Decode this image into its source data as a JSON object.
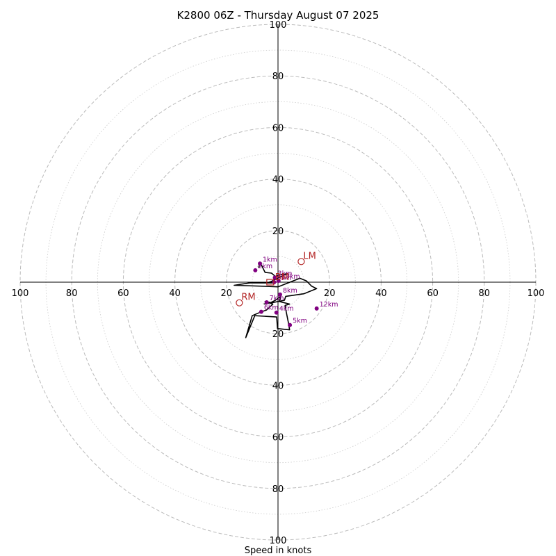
{
  "chart_data": {
    "type": "scatter",
    "subtype": "hodograph",
    "title": "K2800 06Z - Thursday August 07 2025",
    "xlabel": "Speed in knots",
    "rmax": 100,
    "ring_ticks": [
      20,
      40,
      60,
      80,
      100
    ],
    "axis_tick_labels": {
      "top": [
        "20",
        "40",
        "60",
        "80",
        "100"
      ],
      "bottom": [
        "20",
        "40",
        "60",
        "80",
        "100"
      ],
      "left": [
        "20",
        "40",
        "60",
        "80",
        "100"
      ],
      "right": [
        "20",
        "40",
        "60",
        "80",
        "100"
      ]
    },
    "grid": true,
    "colors": {
      "trace": "#000000",
      "height_marker": "#800080",
      "motion_marker": "#b22222",
      "grid": "#bbbbbb",
      "grid_minor": "#d0d0d0"
    },
    "trace": [
      [
        -7.5,
        -5.5
      ],
      [
        -7.0,
        -7.8
      ],
      [
        -5.0,
        -3.8
      ],
      [
        -2.5,
        -3.5
      ],
      [
        -1.0,
        -2.2
      ],
      [
        0.5,
        -2.8
      ],
      [
        3.2,
        -3.2
      ],
      [
        -2.8,
        -0.2
      ],
      [
        -4.0,
        0.2
      ],
      [
        -1.2,
        0.3
      ],
      [
        -11.0,
        0.3
      ],
      [
        -17.0,
        1.2
      ],
      [
        -5.0,
        1.6
      ],
      [
        0.0,
        1.8
      ],
      [
        8.5,
        -1.5
      ],
      [
        11.0,
        -0.5
      ],
      [
        13.0,
        1.5
      ],
      [
        15.0,
        2.5
      ],
      [
        10.0,
        4.5
      ],
      [
        3.0,
        5.5
      ],
      [
        2.5,
        7.0
      ],
      [
        -2.5,
        8.0
      ],
      [
        -5.0,
        7.5
      ],
      [
        -2.0,
        8.5
      ],
      [
        -3.0,
        9.5
      ],
      [
        -4.5,
        10.8
      ],
      [
        -6.5,
        11.5
      ],
      [
        -10.0,
        13.0
      ],
      [
        -12.5,
        21.5
      ],
      [
        -9.0,
        13.0
      ],
      [
        -0.5,
        13.5
      ],
      [
        -0.2,
        18.0
      ],
      [
        4.5,
        18.5
      ],
      [
        4.0,
        15.5
      ],
      [
        3.0,
        10.5
      ],
      [
        2.8,
        9.0
      ],
      [
        4.5,
        8.5
      ],
      [
        0.5,
        7.5
      ],
      [
        1.0,
        5.5
      ],
      [
        -1.0,
        7.0
      ],
      [
        -3.0,
        8.0
      ],
      [
        -5.5,
        8.5
      ]
    ],
    "height_points": [
      {
        "label": "1km",
        "u": -7.0,
        "v": -7.2
      },
      {
        "label": "2km",
        "u": -8.8,
        "v": -4.6
      },
      {
        "label": "3km",
        "u": -1.2,
        "v": -1.8
      },
      {
        "label": "4km",
        "u": -0.6,
        "v": 11.8
      },
      {
        "label": "5km",
        "u": 4.6,
        "v": 16.6
      },
      {
        "label": "6km",
        "u": -6.5,
        "v": 11.5
      },
      {
        "label": "7km",
        "u": -4.4,
        "v": 7.8
      },
      {
        "label": "8km",
        "u": 0.8,
        "v": 4.8
      },
      {
        "label": "9km",
        "u": -1.5,
        "v": 0.0
      },
      {
        "label": "10km",
        "u": 0.2,
        "v": -0.5
      },
      {
        "label": "12km",
        "u": 15.0,
        "v": 10.2
      }
    ],
    "storm_motion": [
      {
        "label": "LM",
        "u": 9.0,
        "v": -8.0
      },
      {
        "label": "RM",
        "u": -15.0,
        "v": 8.0
      },
      {
        "label": "BM",
        "u": -3.0,
        "v": 0.0
      }
    ]
  }
}
